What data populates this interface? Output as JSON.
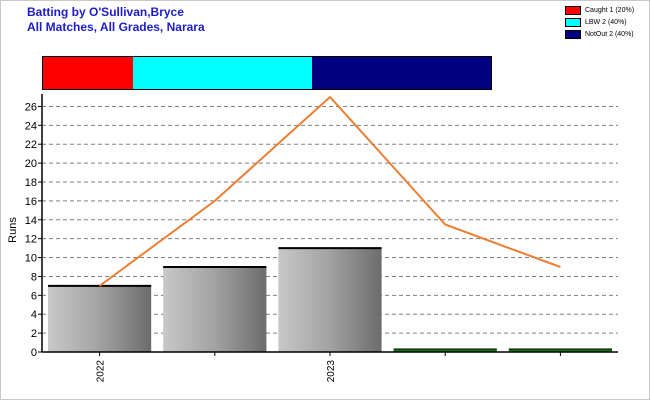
{
  "title_line1": "Batting by O'Sullivan,Bryce",
  "title_line2": "All Matches, All Grades, Narara",
  "legend": [
    {
      "label": "Caught 1 (20%)",
      "color": "#ff0000"
    },
    {
      "label": "LBW 2 (40%)",
      "color": "#00ffff"
    },
    {
      "label": "NotOut 2 (40%)",
      "color": "#000080"
    }
  ],
  "dismissal_split": [
    {
      "name": "Caught",
      "fraction": 0.2,
      "color": "#ff0000"
    },
    {
      "name": "LBW",
      "fraction": 0.4,
      "color": "#00ffff"
    },
    {
      "name": "NotOut",
      "fraction": 0.4,
      "color": "#000080"
    }
  ],
  "chart_data": {
    "type": "bar",
    "ylabel": "Runs",
    "ylim": [
      0,
      27
    ],
    "yticks": [
      0,
      2,
      4,
      6,
      8,
      10,
      12,
      14,
      16,
      18,
      20,
      22,
      24,
      26
    ],
    "grid": true,
    "x_tick_labels": [
      "2022",
      "2023"
    ],
    "bars": [
      {
        "value": 7,
        "color": "#a0a0a0"
      },
      {
        "value": 9,
        "color": "#a0a0a0"
      },
      {
        "value": 11,
        "color": "#a0a0a0"
      },
      {
        "value": 0,
        "color": "#008000"
      },
      {
        "value": 0,
        "color": "#008000"
      }
    ],
    "line": {
      "values": [
        7,
        16,
        27,
        13.5,
        9
      ],
      "color": "#ed7d31"
    }
  }
}
